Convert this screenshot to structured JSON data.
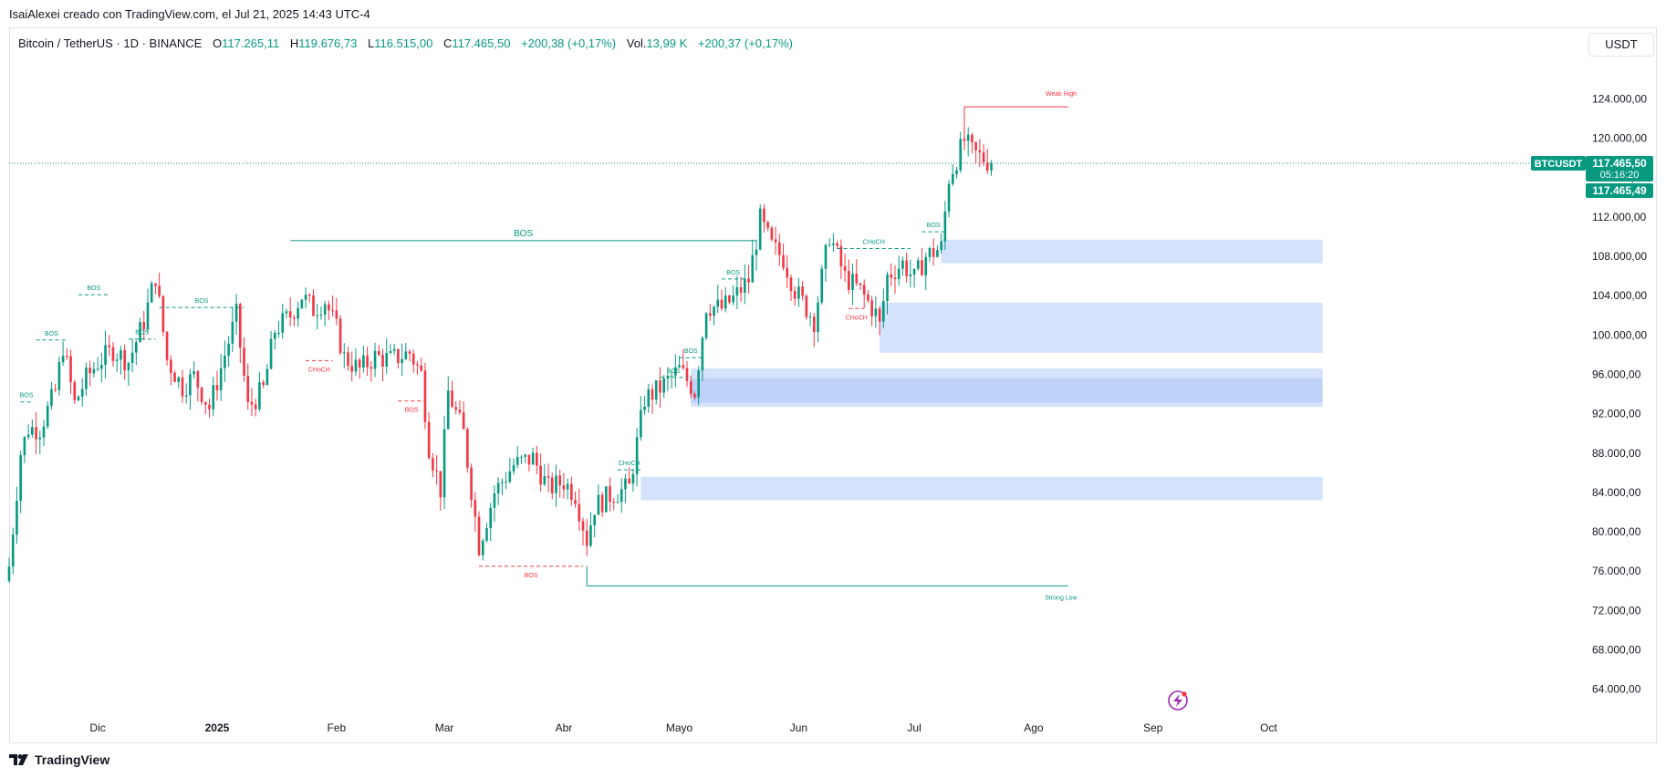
{
  "caption": "IsaiAlexei creado con TradingView.com, el Jul 21, 2025 14:43 UTC-4",
  "legend": {
    "symbol": "Bitcoin / TetherUS · 1D · BINANCE",
    "o_label": "O",
    "o_value": "117.265,11",
    "h_label": "H",
    "h_value": "119.676,73",
    "l_label": "L",
    "l_value": "116.515,00",
    "c_label": "C",
    "c_value": "117.465,50",
    "change": "+200,38 (+0,17%)",
    "vol_label": "Vol.",
    "vol_value": "13,99 K",
    "vol_change": "+200,37 (+0,17%)"
  },
  "currency_button": "USDT",
  "footer": {
    "brand": "TradingView"
  },
  "colors": {
    "up": "#089981",
    "down": "#f23645",
    "zone": "#c7d8fb",
    "zone_dark": "#a9c3f7",
    "price_tag": "#089981",
    "grid": "#f0f3fa",
    "axis_text": "#131722",
    "lightning": "#9c27b0"
  },
  "chart_data": {
    "type": "candlestick",
    "symbol": "BTCUSDT",
    "y_axis": {
      "min": 61000,
      "max": 128500,
      "ticks": [
        124000,
        120000,
        116000,
        112000,
        108000,
        104000,
        100000,
        96000,
        92000,
        88000,
        84000,
        80000,
        76000,
        72000,
        68000,
        64000
      ],
      "tick_labels": [
        "124.000,00",
        "120.000,00",
        "116.000,00",
        "112.000,00",
        "108.000,00",
        "104.000,00",
        "100.000,00",
        "96.000,00",
        "92.000,00",
        "88.000,00",
        "84.000,00",
        "80.000,00",
        "76.000,00",
        "72.000,00",
        "68.000,00",
        "64.000,00"
      ]
    },
    "x_axis": {
      "start": "2024-11-08",
      "end": "2025-10-26",
      "ticks": [
        {
          "date": "2024-12-01",
          "label": "Dic",
          "bold": false
        },
        {
          "date": "2025-01-01",
          "label": "2025",
          "bold": true
        },
        {
          "date": "2025-02-01",
          "label": "Feb",
          "bold": false
        },
        {
          "date": "2025-03-01",
          "label": "Mar",
          "bold": false
        },
        {
          "date": "2025-04-01",
          "label": "Abr",
          "bold": false
        },
        {
          "date": "2025-05-01",
          "label": "Mayo",
          "bold": false
        },
        {
          "date": "2025-06-01",
          "label": "Jun",
          "bold": false
        },
        {
          "date": "2025-07-01",
          "label": "Jul",
          "bold": false
        },
        {
          "date": "2025-08-01",
          "label": "Ago",
          "bold": false
        },
        {
          "date": "2025-09-01",
          "label": "Sep",
          "bold": false
        },
        {
          "date": "2025-10-01",
          "label": "Oct",
          "bold": false
        }
      ]
    },
    "last_price": 117465.5,
    "price_tags": {
      "symbol": "BTCUSDT",
      "price": "117.465,50",
      "countdown": "05:16:20",
      "price2": "117.465,49"
    },
    "close_path": [
      [
        "2024-11-08",
        76500
      ],
      [
        "2024-11-11",
        88000
      ],
      [
        "2024-11-13",
        90500
      ],
      [
        "2024-11-16",
        90500
      ],
      [
        "2024-11-20",
        94300
      ],
      [
        "2024-11-22",
        98900
      ],
      [
        "2024-11-25",
        93000
      ],
      [
        "2024-11-28",
        95600
      ],
      [
        "2024-12-01",
        97200
      ],
      [
        "2024-12-05",
        98500
      ],
      [
        "2024-12-09",
        97300
      ],
      [
        "2024-12-13",
        101400
      ],
      [
        "2024-12-16",
        106000
      ],
      [
        "2024-12-19",
        97500
      ],
      [
        "2024-12-23",
        94700
      ],
      [
        "2024-12-26",
        95800
      ],
      [
        "2024-12-30",
        92600
      ],
      [
        "2025-01-03",
        98000
      ],
      [
        "2025-01-06",
        102000
      ],
      [
        "2025-01-09",
        92600
      ],
      [
        "2025-01-13",
        94500
      ],
      [
        "2025-01-16",
        100500
      ],
      [
        "2025-01-20",
        102000
      ],
      [
        "2025-01-23",
        104000
      ],
      [
        "2025-01-26",
        102600
      ],
      [
        "2025-01-29",
        103500
      ],
      [
        "2025-02-01",
        100600
      ],
      [
        "2025-02-03",
        97700
      ],
      [
        "2025-02-07",
        96500
      ],
      [
        "2025-02-11",
        97800
      ],
      [
        "2025-02-15",
        97500
      ],
      [
        "2025-02-20",
        98200
      ],
      [
        "2025-02-23",
        96000
      ],
      [
        "2025-02-25",
        88700
      ],
      [
        "2025-02-28",
        84300
      ],
      [
        "2025-03-02",
        94200
      ],
      [
        "2025-03-06",
        90000
      ],
      [
        "2025-03-10",
        78600
      ],
      [
        "2025-03-14",
        84000
      ],
      [
        "2025-03-19",
        86800
      ],
      [
        "2025-03-24",
        87500
      ],
      [
        "2025-03-28",
        84400
      ],
      [
        "2025-04-01",
        85100
      ],
      [
        "2025-04-04",
        83800
      ],
      [
        "2025-04-07",
        79200
      ],
      [
        "2025-04-09",
        82600
      ],
      [
        "2025-04-13",
        83700
      ],
      [
        "2025-04-18",
        84500
      ],
      [
        "2025-04-22",
        93500
      ],
      [
        "2025-04-26",
        94600
      ],
      [
        "2025-05-01",
        96500
      ],
      [
        "2025-05-05",
        94300
      ],
      [
        "2025-05-08",
        103000
      ],
      [
        "2025-05-12",
        102700
      ],
      [
        "2025-05-15",
        103700
      ],
      [
        "2025-05-19",
        105600
      ],
      [
        "2025-05-22",
        111700
      ],
      [
        "2025-05-25",
        109000
      ],
      [
        "2025-05-28",
        107800
      ],
      [
        "2025-05-31",
        104600
      ],
      [
        "2025-06-05",
        101500
      ],
      [
        "2025-06-09",
        110200
      ],
      [
        "2025-06-13",
        105900
      ],
      [
        "2025-06-17",
        104500
      ],
      [
        "2025-06-21",
        102200
      ],
      [
        "2025-06-22",
        100900
      ],
      [
        "2025-06-24",
        106000
      ],
      [
        "2025-06-28",
        107300
      ],
      [
        "2025-07-01",
        105700
      ],
      [
        "2025-07-04",
        108000
      ],
      [
        "2025-07-08",
        108900
      ],
      [
        "2025-07-10",
        116000
      ],
      [
        "2025-07-14",
        119800
      ],
      [
        "2025-07-16",
        118600
      ],
      [
        "2025-07-19",
        117900
      ],
      [
        "2025-07-21",
        117465
      ]
    ],
    "zones": [
      {
        "from": "2025-07-08",
        "to": "2025-10-15",
        "top": 109700,
        "bottom": 107300
      },
      {
        "from": "2025-06-22",
        "to": "2025-10-15",
        "top": 103300,
        "bottom": 98200
      },
      {
        "from": "2025-05-04",
        "to": "2025-10-15",
        "top": 96600,
        "bottom": 95600
      },
      {
        "from": "2025-05-04",
        "to": "2025-10-15",
        "top": 95600,
        "bottom": 93100,
        "dark": true
      },
      {
        "from": "2025-05-04",
        "to": "2025-10-15",
        "top": 93100,
        "bottom": 92700
      },
      {
        "from": "2025-04-21",
        "to": "2025-10-15",
        "top": 85600,
        "bottom": 83200
      }
    ],
    "structure_lines": [
      {
        "type": "solid",
        "color": "up",
        "from": "2025-01-20",
        "to": "2025-05-21",
        "price": 109600,
        "label": "BOS",
        "label_size": 10
      },
      {
        "type": "solid",
        "color": "down",
        "from": "2025-07-14",
        "to": "2025-08-10",
        "price": 123200,
        "vertical_from": 118800,
        "label": "Weak High",
        "label_pos": "end"
      },
      {
        "type": "solid",
        "color": "up",
        "from": "2025-04-07",
        "to": "2025-08-10",
        "price": 74500,
        "vertical_from": 76500,
        "label": "Strong Low",
        "label_pos": "end-below"
      },
      {
        "type": "dashed",
        "color": "up",
        "from": "2024-11-11",
        "to": "2024-11-14",
        "price": 93200,
        "label": "BOS"
      },
      {
        "type": "dashed",
        "color": "up",
        "from": "2024-11-15",
        "to": "2024-11-23",
        "price": 99500,
        "label": "BOS"
      },
      {
        "type": "dashed",
        "color": "up",
        "from": "2024-11-26",
        "to": "2024-12-04",
        "price": 104100,
        "label": "BOS"
      },
      {
        "type": "dashed",
        "color": "up",
        "from": "2024-12-09",
        "to": "2024-12-16",
        "price": 99600,
        "label": "BOS"
      },
      {
        "type": "dashed",
        "color": "up",
        "from": "2024-12-17",
        "to": "2025-01-08",
        "price": 102800,
        "label": "BOS"
      },
      {
        "type": "dashed",
        "color": "down",
        "from": "2025-01-24",
        "to": "2025-01-31",
        "price": 97400,
        "label": "CHoCH"
      },
      {
        "type": "dashed",
        "color": "down",
        "from": "2025-02-17",
        "to": "2025-02-24",
        "price": 93300,
        "label": "BOS"
      },
      {
        "type": "dashed",
        "color": "down",
        "from": "2025-03-10",
        "to": "2025-04-06",
        "price": 76500,
        "label": "BOS"
      },
      {
        "type": "dashed",
        "color": "up",
        "from": "2025-04-15",
        "to": "2025-04-21",
        "price": 86300,
        "label": "CHoCH"
      },
      {
        "type": "dashed",
        "color": "up",
        "from": "2025-04-26",
        "to": "2025-05-03",
        "price": 95700,
        "label": "BOS"
      },
      {
        "type": "dashed",
        "color": "up",
        "from": "2025-05-01",
        "to": "2025-05-07",
        "price": 97700,
        "label": "BOS"
      },
      {
        "type": "dashed",
        "color": "up",
        "from": "2025-05-12",
        "to": "2025-05-18",
        "price": 105700,
        "label": "BOS"
      },
      {
        "type": "dashed",
        "color": "up",
        "from": "2025-06-11",
        "to": "2025-06-30",
        "price": 108800,
        "label": "CHoCH"
      },
      {
        "type": "dashed",
        "color": "down",
        "from": "2025-06-14",
        "to": "2025-06-18",
        "price": 102700,
        "label": "CHoCH"
      },
      {
        "type": "dashed",
        "color": "up",
        "from": "2025-07-03",
        "to": "2025-07-09",
        "price": 110500,
        "label": "BOS"
      }
    ]
  }
}
